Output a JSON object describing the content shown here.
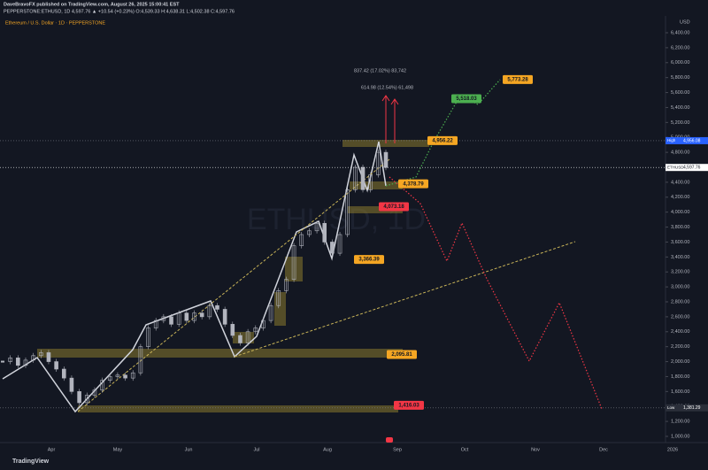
{
  "header": {
    "publisher": "DaveBravoFX published on TradingView.com, August 26, 2025 15:00:41 EST",
    "symbol_line": "PEPPERSTONE:ETHUSD, 1D 4,597.76 ▲ +10.54 (+0.23%) O:4,539.33 H:4,638.31 L:4,502.38 C:4,597.76"
  },
  "chart_title": "Ethereum / U.S. Dollar · 1D · PEPPERSTONE",
  "currency": "USD",
  "brand": "TradingView",
  "watermark": "ETHUSD, 1D",
  "months": [
    "Apr",
    "May",
    "Jun",
    "Jul",
    "Aug",
    "Sep",
    "Oct",
    "Nov",
    "Dec",
    "2026"
  ],
  "measurements": [
    "837.42 (17.02%) 83,742",
    "614.98 (12.54%) 61,498"
  ],
  "price_tags": [
    {
      "tag": "High",
      "value": 4956.08,
      "label": "4,956.08",
      "color": "#2962ff"
    },
    {
      "tag": "ETHUSD",
      "value": 4597.76,
      "label": "4,597.76",
      "color": "#ffffff"
    },
    {
      "tag": "Low",
      "value": 1381.29,
      "label": "1,381.29",
      "color": "#2a2e39"
    }
  ],
  "annotations": [
    {
      "value": 5773.28,
      "label": "5,773.28",
      "color": "#f5a623"
    },
    {
      "value": 5518.03,
      "label": "5,518.03",
      "color": "#4caf50"
    },
    {
      "value": 4956.22,
      "label": "4,956.22",
      "color": "#f5a623"
    },
    {
      "value": 4378.79,
      "label": "4,378.79",
      "color": "#f5a623"
    },
    {
      "value": 4073.18,
      "label": "4,073.18",
      "color": "#f23645"
    },
    {
      "value": 3366.39,
      "label": "3,366.39",
      "color": "#f5a623"
    },
    {
      "value": 2095.81,
      "label": "2,095.81",
      "color": "#f5a623"
    },
    {
      "value": 1416.03,
      "label": "1,416.03",
      "color": "#f23645"
    }
  ],
  "chart_data": {
    "type": "candlestick",
    "values": [
      2000,
      2050,
      1950,
      2020,
      2080,
      2120,
      2000,
      1900,
      1780,
      1600,
      1450,
      1550,
      1620,
      1750,
      1800,
      1820,
      1780,
      1850,
      2200,
      2450,
      2550,
      2600,
      2500,
      2650,
      2550,
      2650,
      2600,
      2750,
      2700,
      2500,
      2350,
      2250,
      2400,
      2450,
      2550,
      2750,
      2950,
      3100,
      3550,
      3700,
      3750,
      3850,
      3600,
      3450,
      3700,
      4300,
      4600,
      4300,
      4500,
      4800,
      4597.76
    ],
    "color": "#b2b5be",
    "ylim": [
      1000,
      6400
    ],
    "yticks": [
      {
        "value": 6400,
        "label": "6,400.00"
      },
      {
        "value": 6200,
        "label": "6,200.00"
      },
      {
        "value": 6000,
        "label": "6,000.00"
      },
      {
        "value": 5800,
        "label": "5,800.00"
      },
      {
        "value": 5600,
        "label": "5,600.00"
      },
      {
        "value": 5400,
        "label": "5,400.00"
      },
      {
        "value": 5200,
        "label": "5,200.00"
      },
      {
        "value": 5000,
        "label": "5,000.00"
      },
      {
        "value": 4800,
        "label": "4,800.00"
      },
      {
        "value": 4600,
        "label": "4,600.00"
      },
      {
        "value": 4400,
        "label": "4,400.00"
      },
      {
        "value": 4200,
        "label": "4,200.00"
      },
      {
        "value": 4000,
        "label": "4,000.00"
      },
      {
        "value": 3800,
        "label": "3,800.00"
      },
      {
        "value": 3600,
        "label": "3,600.00"
      },
      {
        "value": 3400,
        "label": "3,400.00"
      },
      {
        "value": 3200,
        "label": "3,200.00"
      },
      {
        "value": 3000,
        "label": "3,000.00"
      },
      {
        "value": 2800,
        "label": "2,800.00"
      },
      {
        "value": 2600,
        "label": "2,600.00"
      },
      {
        "value": 2400,
        "label": "2,400.00"
      },
      {
        "value": 2200,
        "label": "2,200.00"
      },
      {
        "value": 2000,
        "label": "2,000.00"
      },
      {
        "value": 1800,
        "label": "1,800.00"
      },
      {
        "value": 1600,
        "label": "1,600.00"
      },
      {
        "value": 1400,
        "label": "1,400.00"
      },
      {
        "value": 1200,
        "label": "1,200.00"
      },
      {
        "value": 1000,
        "label": "1,000.00"
      }
    ]
  }
}
